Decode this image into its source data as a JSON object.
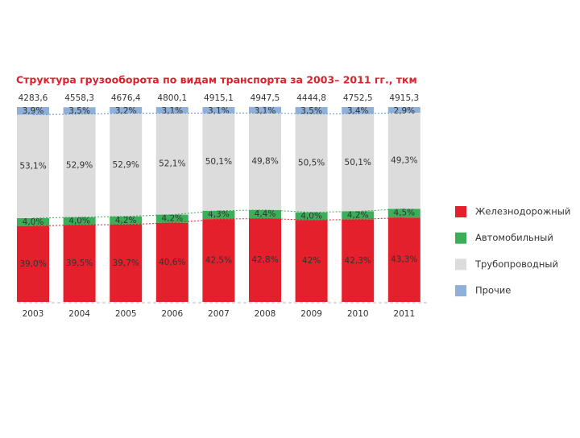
{
  "chart_data": {
    "type": "stacked_bar",
    "title": "Структура грузооборота по видам транспорта за 2003– 2011 гг., ткм",
    "categories": [
      "2003",
      "2004",
      "2005",
      "2006",
      "2007",
      "2008",
      "2009",
      "2010",
      "2011"
    ],
    "totals": {
      "values": [
        4283.6,
        4558.3,
        4676.4,
        4800.1,
        4915.1,
        4947.5,
        4444.8,
        4752.5,
        4915.3
      ],
      "value_labels": [
        "4283,6",
        "4558,3",
        "4676,4",
        "4800,1",
        "4915,1",
        "4947,5",
        "4444,8",
        "4752,5",
        "4915,3"
      ]
    },
    "ylim": [
      0,
      100
    ],
    "series": [
      {
        "name": "Железнодорожный",
        "color": "#e3202b",
        "values": [
          39.0,
          39.5,
          39.7,
          40.6,
          42.5,
          42.8,
          42,
          42.3,
          43.3
        ],
        "value_labels": [
          "39,0%",
          "39,5%",
          "39,7%",
          "40,6%",
          "42,5%",
          "42,8%",
          "42%",
          "42,3%",
          "43,3%"
        ]
      },
      {
        "name": "Автомобильный",
        "color": "#3cae5a",
        "values": [
          4.0,
          4.0,
          4.2,
          4.2,
          4.3,
          4.4,
          4.0,
          4.2,
          4.5
        ],
        "value_labels": [
          "4,0%",
          "4,0%",
          "4,2%",
          "4,2%",
          "4,3%",
          "4,4%",
          "4,0%",
          "4,2%",
          "4,5%"
        ]
      },
      {
        "name": "Трубопроводный",
        "color": "#dcdcdc",
        "values": [
          53.1,
          52.9,
          52.9,
          52.1,
          50.1,
          49.8,
          50.5,
          50.1,
          49.3
        ],
        "value_labels": [
          "53,1%",
          "52,9%",
          "52,9%",
          "52,1%",
          "50,1%",
          "49,8%",
          "50,5%",
          "50,1%",
          "49,3%"
        ]
      },
      {
        "name": "Прочие",
        "color": "#8fb1d9",
        "values": [
          3.9,
          3.5,
          3.2,
          3.1,
          3.1,
          3.1,
          3.5,
          3.4,
          2.9
        ],
        "value_labels": [
          "3,9%",
          "3,5%",
          "3,2%",
          "3,1%",
          "3,1%",
          "3,1%",
          "3,5%",
          "3,4%",
          "2,9%"
        ]
      }
    ]
  }
}
